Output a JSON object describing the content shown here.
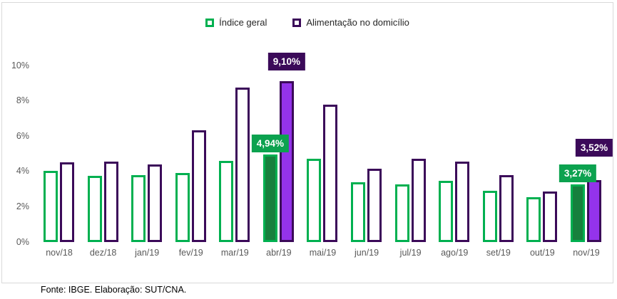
{
  "legend": {
    "items": [
      {
        "label": "Índice geral",
        "color": "#00B050"
      },
      {
        "label": "Alimentação no domicílio",
        "color": "#3B0A59"
      }
    ]
  },
  "footer": {
    "source": "Fonte: IBGE. Elaboração: SUT/CNA."
  },
  "colors": {
    "green_outline": "#00B050",
    "green_fill": "#17803D",
    "green_label_bg": "#0CA24F",
    "purple_outline": "#3B0A59",
    "purple_fill": "#9433EB",
    "purple_label_bg": "#3B0A59",
    "axis_text": "#595959",
    "frame_border": "#D9D9D9"
  },
  "chart_data": {
    "type": "bar",
    "title": "",
    "xlabel": "",
    "ylabel": "",
    "categories": [
      "nov/18",
      "dez/18",
      "jan/19",
      "fev/19",
      "mar/19",
      "abr/19",
      "mai/19",
      "jun/19",
      "jul/19",
      "ago/19",
      "set/19",
      "out/19",
      "nov/19"
    ],
    "series": [
      {
        "name": "Índice geral",
        "outline": "#00B050",
        "fill": "#17803D",
        "label_bg": "#0CA24F",
        "values": [
          4.05,
          3.75,
          3.8,
          3.9,
          4.6,
          4.94,
          4.7,
          3.4,
          3.25,
          3.45,
          2.9,
          2.55,
          3.27
        ]
      },
      {
        "name": "Alimentação no domicílio",
        "outline": "#3B0A59",
        "fill": "#9433EB",
        "label_bg": "#3B0A59",
        "values": [
          4.5,
          4.55,
          4.4,
          6.35,
          8.75,
          9.1,
          7.8,
          4.15,
          4.7,
          4.55,
          3.8,
          2.85,
          3.52
        ]
      }
    ],
    "highlighted_categories": [
      "abr/19",
      "nov/19"
    ],
    "annotations": [
      {
        "category": "abr/19",
        "series": "Índice geral",
        "text": "4,94%"
      },
      {
        "category": "abr/19",
        "series": "Alimentação no domicílio",
        "text": "9,10%"
      },
      {
        "category": "nov/19",
        "series": "Índice geral",
        "text": "3,27%"
      },
      {
        "category": "nov/19",
        "series": "Alimentação no domicílio",
        "text": "3,52%"
      }
    ],
    "y_ticks": [
      "0%",
      "2%",
      "4%",
      "6%",
      "8%",
      "10%"
    ],
    "ylim": [
      0,
      10
    ],
    "grid": false,
    "legend_position": "top"
  }
}
